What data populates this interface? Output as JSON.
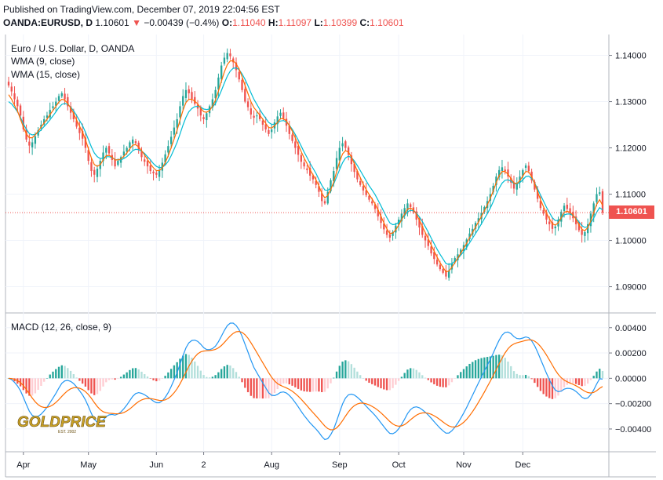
{
  "header": {
    "published": "Published on TradingView.com, December 07, 2019 22:04:56 EST",
    "symbol": "OANDA:EURUSD, D",
    "last": "1.10601",
    "arrow": "▼",
    "change": "−0.00439 (−0.4%)",
    "o_label": "O:",
    "o_value": "1.11040",
    "h_label": "H:",
    "h_value": "1.11097",
    "l_label": "L:",
    "l_value": "1.10399",
    "c_label": "C:",
    "c_value": "1.10601"
  },
  "legend": {
    "title": "Euro / U.S. Dollar, D, OANDA",
    "wma9": "WMA (9, close)",
    "wma15": "WMA (15, close)",
    "macd": "MACD (12, 26, close, 9)"
  },
  "price_tag": "1.10601",
  "logo": {
    "text": "GOLDPRICE",
    "sub": "EST. 2002"
  },
  "colors": {
    "up": "#26a69a",
    "down": "#ef5350",
    "wma9": "#ff6d00",
    "wma15": "#00bcd4",
    "macd_line": "#2196f3",
    "signal_line": "#ff6d00",
    "hist_up_strong": "#26a69a",
    "hist_up_weak": "#b2dfdb",
    "hist_down_strong": "#ef5350",
    "hist_down_weak": "#ffcdd2",
    "grid": "#f0f3fa",
    "axis": "#787b86"
  },
  "chart_data": [
    {
      "type": "candlestick",
      "title": "Euro / U.S. Dollar, D, OANDA",
      "y_ticks": [
        "1.14000",
        "1.13000",
        "1.12000",
        "1.11000",
        "1.10000",
        "1.09000"
      ],
      "ylim": [
        1.0845,
        1.1445
      ],
      "x_ticks": [
        "Apr",
        "May",
        "Jun",
        "2",
        "Aug",
        "Sep",
        "Oct",
        "Nov",
        "Dec"
      ],
      "last_price": 1.10601,
      "series": [
        {
          "name": "WMA (9, close)",
          "role": "wma9"
        },
        {
          "name": "WMA (15, close)",
          "role": "wma15"
        }
      ],
      "close": [
        1.1335,
        1.1322,
        1.1305,
        1.129,
        1.127,
        1.124,
        1.1218,
        1.1205,
        1.1212,
        1.1225,
        1.1238,
        1.125,
        1.1262,
        1.127,
        1.1282,
        1.129,
        1.13,
        1.1312,
        1.1318,
        1.1305,
        1.129,
        1.1276,
        1.1262,
        1.1246,
        1.1232,
        1.122,
        1.12,
        1.1172,
        1.115,
        1.1142,
        1.1155,
        1.1172,
        1.119,
        1.12,
        1.1188,
        1.1174,
        1.116,
        1.1172,
        1.118,
        1.1192,
        1.12,
        1.1212,
        1.1218,
        1.121,
        1.1196,
        1.118,
        1.117,
        1.116,
        1.115,
        1.1145,
        1.1142,
        1.1152,
        1.1168,
        1.1186,
        1.1204,
        1.1224,
        1.1244,
        1.1262,
        1.129,
        1.1312,
        1.1325,
        1.1318,
        1.1306,
        1.1295,
        1.1285,
        1.127,
        1.1262,
        1.1275,
        1.129,
        1.1305,
        1.1325,
        1.1352,
        1.1378,
        1.1395,
        1.1405,
        1.1398,
        1.1385,
        1.1368,
        1.1348,
        1.1325,
        1.13,
        1.1288,
        1.1272,
        1.1265,
        1.127,
        1.1262,
        1.125,
        1.124,
        1.123,
        1.124,
        1.1255,
        1.1268,
        1.1276,
        1.1264,
        1.1248,
        1.123,
        1.1215,
        1.12,
        1.1185,
        1.117,
        1.116,
        1.1152,
        1.114,
        1.1132,
        1.112,
        1.1105,
        1.1085,
        1.108,
        1.1105,
        1.113,
        1.115,
        1.1178,
        1.12,
        1.121,
        1.12,
        1.1185,
        1.1165,
        1.1148,
        1.1132,
        1.112,
        1.1108,
        1.1098,
        1.1088,
        1.108,
        1.1068,
        1.1052,
        1.1038,
        1.1024,
        1.1012,
        1.1006,
        1.1018,
        1.1032,
        1.1045,
        1.1058,
        1.107,
        1.108,
        1.1072,
        1.106,
        1.1045,
        1.1028,
        1.1012,
        1.1,
        1.0988,
        1.0972,
        1.096,
        1.0948,
        1.0938,
        1.093,
        1.0922,
        1.0935,
        1.095,
        1.0962,
        1.097,
        1.098,
        1.099,
        1.1002,
        1.1015,
        1.1025,
        1.1038,
        1.1048,
        1.106,
        1.1072,
        1.1085,
        1.11,
        1.1118,
        1.1138,
        1.1152,
        1.1158,
        1.115,
        1.1138,
        1.1125,
        1.1112,
        1.1122,
        1.1138,
        1.1152,
        1.1162,
        1.115,
        1.113,
        1.111,
        1.109,
        1.107,
        1.1058,
        1.1045,
        1.1035,
        1.1025,
        1.103,
        1.1045,
        1.1062,
        1.1075,
        1.1068,
        1.1058,
        1.1048,
        1.1035,
        1.1022,
        1.1012,
        1.1018,
        1.1035,
        1.1058,
        1.108,
        1.11,
        1.1104,
        1.106
      ],
      "wma9": [
        1.1315,
        1.1305,
        1.1292,
        1.128,
        1.1262,
        1.1245,
        1.123,
        1.1222,
        1.1222,
        1.1228,
        1.1236,
        1.1245,
        1.1254,
        1.1262,
        1.1272,
        1.1281,
        1.129,
        1.1299,
        1.1305,
        1.1303,
        1.1296,
        1.1286,
        1.1274,
        1.126,
        1.1247,
        1.1234,
        1.1218,
        1.1198,
        1.1178,
        1.1164,
        1.116,
        1.1164,
        1.1174,
        1.1183,
        1.1184,
        1.118,
        1.1174,
        1.1174,
        1.1176,
        1.1182,
        1.1189,
        1.1198,
        1.1206,
        1.1207,
        1.1202,
        1.1194,
        1.1185,
        1.1175,
        1.1165,
        1.1157,
        1.1151,
        1.1151,
        1.1157,
        1.1168,
        1.1183,
        1.12,
        1.1219,
        1.1238,
        1.126,
        1.1281,
        1.1298,
        1.1305,
        1.1305,
        1.1301,
        1.1295,
        1.1286,
        1.1278,
        1.1277,
        1.1281,
        1.129,
        1.1303,
        1.1323,
        1.1344,
        1.1364,
        1.138,
        1.1388,
        1.1388,
        1.1382,
        1.137,
        1.1354,
        1.1335,
        1.1317,
        1.13,
        1.1287,
        1.1279,
        1.1271,
        1.1262,
        1.1253,
        1.1244,
        1.1243,
        1.1248,
        1.1255,
        1.1263,
        1.1263,
        1.1258,
        1.1248,
        1.1236,
        1.1222,
        1.1207,
        1.1192,
        1.1178,
        1.1166,
        1.1153,
        1.1142,
        1.1131,
        1.1118,
        1.1102,
        1.1092,
        1.1097,
        1.111,
        1.1126,
        1.1148,
        1.117,
        1.1187,
        1.1194,
        1.1191,
        1.118,
        1.1166,
        1.115,
        1.1136,
        1.1122,
        1.111,
        1.1099,
        1.109,
        1.1079,
        1.1066,
        1.1052,
        1.1038,
        1.1025,
        1.1015,
        1.1016,
        1.1023,
        1.1033,
        1.1045,
        1.1057,
        1.1068,
        1.107,
        1.1066,
        1.1057,
        1.1044,
        1.103,
        1.1017,
        1.1004,
        1.099,
        1.0977,
        1.0964,
        1.0952,
        1.0942,
        1.0932,
        1.0934,
        1.0942,
        1.0952,
        1.0962,
        1.0972,
        1.0983,
        1.0994,
        1.1006,
        1.1017,
        1.1029,
        1.104,
        1.1052,
        1.1064,
        1.1077,
        1.1091,
        1.1107,
        1.1125,
        1.114,
        1.1149,
        1.1149,
        1.1143,
        1.1134,
        1.1124,
        1.1123,
        1.1129,
        1.1139,
        1.1149,
        1.1148,
        1.1138,
        1.1123,
        1.1106,
        1.1088,
        1.1073,
        1.1059,
        1.1047,
        1.1036,
        1.1033,
        1.1038,
        1.1049,
        1.1061,
        1.1063,
        1.1061,
        1.1055,
        1.1046,
        1.1034,
        1.1024,
        1.1021,
        1.1028,
        1.1042,
        1.106,
        1.1078,
        1.1088,
        1.1076
      ],
      "wma15": [
        1.13,
        1.1295,
        1.1287,
        1.1278,
        1.1266,
        1.1252,
        1.124,
        1.1231,
        1.1228,
        1.1229,
        1.1233,
        1.1239,
        1.1246,
        1.1253,
        1.1261,
        1.1269,
        1.1278,
        1.1287,
        1.1294,
        1.1296,
        1.1294,
        1.1288,
        1.128,
        1.127,
        1.1259,
        1.1248,
        1.1234,
        1.1218,
        1.1202,
        1.1189,
        1.1181,
        1.1177,
        1.1178,
        1.1181,
        1.1181,
        1.1179,
        1.1175,
        1.1174,
        1.1174,
        1.1177,
        1.1181,
        1.1187,
        1.1194,
        1.1197,
        1.1196,
        1.1193,
        1.1188,
        1.1181,
        1.1174,
        1.1166,
        1.116,
        1.1157,
        1.1158,
        1.1163,
        1.1171,
        1.1183,
        1.1197,
        1.1212,
        1.123,
        1.1249,
        1.1266,
        1.1278,
        1.1285,
        1.1289,
        1.129,
        1.1288,
        1.1284,
        1.1283,
        1.1284,
        1.1288,
        1.1296,
        1.1309,
        1.1324,
        1.134,
        1.1355,
        1.1366,
        1.1372,
        1.1373,
        1.1369,
        1.136,
        1.1348,
        1.1334,
        1.1319,
        1.1305,
        1.1294,
        1.1283,
        1.1273,
        1.1264,
        1.1255,
        1.1251,
        1.1251,
        1.1254,
        1.1258,
        1.1259,
        1.1256,
        1.1249,
        1.124,
        1.1229,
        1.1217,
        1.1204,
        1.1191,
        1.1179,
        1.1167,
        1.1156,
        1.1145,
        1.1132,
        1.1119,
        1.1109,
        1.1108,
        1.1113,
        1.1122,
        1.1137,
        1.1153,
        1.1168,
        1.1178,
        1.1182,
        1.1179,
        1.1172,
        1.1162,
        1.1151,
        1.114,
        1.1129,
        1.1118,
        1.1109,
        1.1099,
        1.1087,
        1.1075,
        1.1062,
        1.1049,
        1.1038,
        1.1034,
        1.1035,
        1.1039,
        1.1046,
        1.1054,
        1.1062,
        1.1065,
        1.1064,
        1.1059,
        1.1051,
        1.1041,
        1.103,
        1.1018,
        1.1005,
        1.0993,
        1.0981,
        1.097,
        1.096,
        1.095,
        1.0948,
        1.095,
        1.0955,
        1.0961,
        1.0968,
        1.0976,
        1.0985,
        1.0995,
        1.1005,
        1.1015,
        1.1025,
        1.1036,
        1.1047,
        1.1058,
        1.107,
        1.1084,
        1.1099,
        1.1113,
        1.1124,
        1.113,
        1.1131,
        1.1128,
        1.1123,
        1.1122,
        1.1125,
        1.1131,
        1.1138,
        1.1139,
        1.1134,
        1.1124,
        1.1112,
        1.1098,
        1.1085,
        1.1072,
        1.106,
        1.1049,
        1.1043,
        1.1043,
        1.1048,
        1.1055,
        1.1057,
        1.1057,
        1.1054,
        1.1048,
        1.104,
        1.1032,
        1.1028,
        1.103,
        1.1037,
        1.1048,
        1.1061,
        1.1071,
        1.1066
      ]
    },
    {
      "type": "macd",
      "title": "MACD (12, 26, close, 9)",
      "y_ticks": [
        "0.00400",
        "0.00200",
        "0.00000",
        "−0.00200",
        "−0.00400"
      ],
      "ylim": [
        -0.0058,
        0.0051
      ],
      "series": [
        {
          "role": "macd_line"
        },
        {
          "role": "signal_line"
        },
        {
          "role": "histogram"
        }
      ]
    }
  ]
}
